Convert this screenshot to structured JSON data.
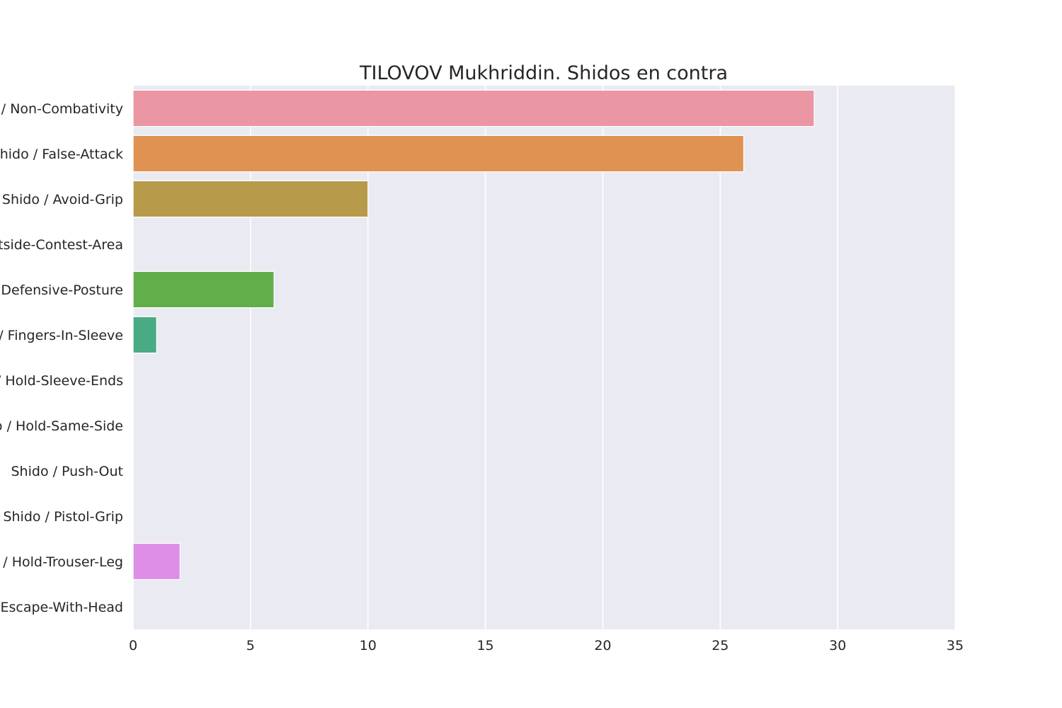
{
  "chart_data": {
    "type": "bar",
    "orientation": "horizontal",
    "title": "TILOVOV Mukhriddin. Shidos en contra",
    "xlabel": "",
    "ylabel": "",
    "xlim": [
      0,
      35
    ],
    "xticks": [
      "0",
      "5",
      "10",
      "15",
      "20",
      "25",
      "30",
      "35"
    ],
    "grid": true,
    "categories": [
      "Shido / Non-Combativity",
      "Shido / False-Attack",
      "Shido / Avoid-Grip",
      "Shido / Outside-Contest-Area",
      "Shido / Defensive-Posture",
      "Shido / Fingers-In-Sleeve",
      "Shido / Hold-Sleeve-Ends",
      "Shido / Hold-Same-Side",
      "Shido / Push-Out",
      "Shido / Pistol-Grip",
      "Shido / Hold-Trouser-Leg",
      "Shido / Escape-With-Head"
    ],
    "values": [
      29,
      26,
      10,
      0,
      6,
      1,
      0,
      0,
      0,
      0,
      2,
      0
    ],
    "colors": [
      "#ea96a3",
      "#e09253",
      "#b89b4a",
      "#9faa4a",
      "#61ae4a",
      "#4aaa83",
      "#4fa7a2",
      "#52a6bb",
      "#5ea2d9",
      "#a79bd9",
      "#df8ee8",
      "#e891c3"
    ]
  }
}
